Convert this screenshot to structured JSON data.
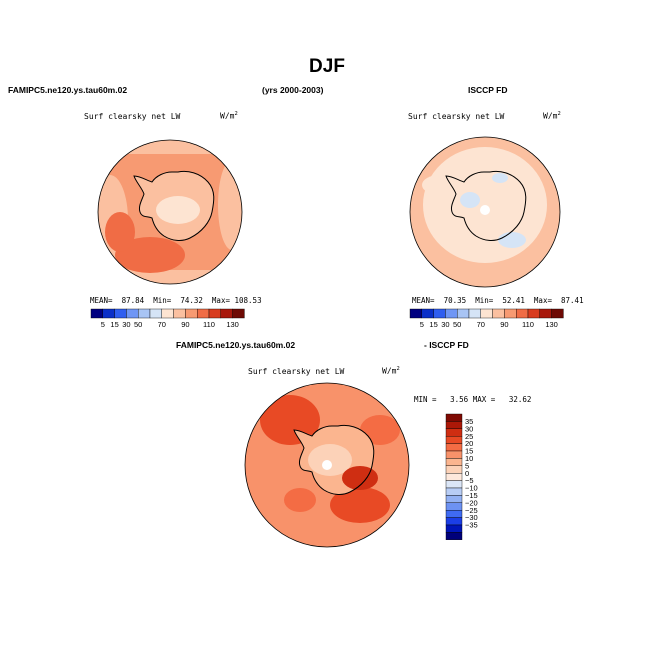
{
  "page": {
    "title": "DJF",
    "left_case": "FAMIPC5.ne120.ys.tau60m.02",
    "years": "(yrs 2000-2003)",
    "right_case": "ISCCP FD",
    "diff_left": "FAMIPC5.ne120.ys.tau60m.02",
    "diff_right": "- ISCCP FD"
  },
  "colors": {
    "scale10": [
      "#000080",
      "#0a2fc8",
      "#2f5ef0",
      "#6f96f5",
      "#a8c4f4",
      "#d5e4f6",
      "#fde4d2",
      "#fbc0a0",
      "#f79a72",
      "#f06c45",
      "#d83c1f",
      "#a8180c",
      "#6e0a04"
    ],
    "scaleDiff": [
      "#00007a",
      "#0015b8",
      "#1b3ee6",
      "#3f6bf2",
      "#6d92f2",
      "#93b1f3",
      "#b8cdf5",
      "#dbe6f7",
      "#fde8dc",
      "#fcd2b8",
      "#fbb58f",
      "#f8926a",
      "#f46c44",
      "#e84a25",
      "#cf2e12",
      "#ac1808",
      "#7f0a03"
    ]
  },
  "chart_data": [
    {
      "type": "heatmap",
      "name": "FAMIPC5.ne120.ys.tau60m.02",
      "title": "Surf clearsky net LW",
      "units": "W/m",
      "units_sup": "2",
      "stats": {
        "mean_label": "MEAN=",
        "mean": "87.84",
        "min_label": "Min=",
        "min": "74.32",
        "max_label": "Max=",
        "max": "108.53"
      },
      "colorbar_levels": [
        "5",
        "15",
        "30",
        "50",
        "70",
        "90",
        "110",
        "130"
      ]
    },
    {
      "type": "heatmap",
      "name": "ISCCP FD",
      "title": "Surf clearsky net LW",
      "units": "W/m",
      "units_sup": "2",
      "stats": {
        "mean_label": "MEAN=",
        "mean": "70.35",
        "min_label": "Min=",
        "min": "52.41",
        "max_label": "Max=",
        "max": "87.41"
      },
      "colorbar_levels": [
        "5",
        "15",
        "30",
        "50",
        "70",
        "90",
        "110",
        "130"
      ]
    },
    {
      "type": "heatmap",
      "name": "FAMIPC5.ne120.ys.tau60m.02 - ISCCP FD",
      "title": "Surf clearsky net LW",
      "units": "W/m",
      "units_sup": "2",
      "stats": {
        "min_label": "MIN =",
        "min": "3.56",
        "max_label": "MAX =",
        "max": "32.62"
      },
      "colorbar_levels": [
        "35",
        "30",
        "25",
        "20",
        "15",
        "10",
        "5",
        "0",
        "−5",
        "−10",
        "−15",
        "−20",
        "−25",
        "−30",
        "−35"
      ]
    }
  ]
}
